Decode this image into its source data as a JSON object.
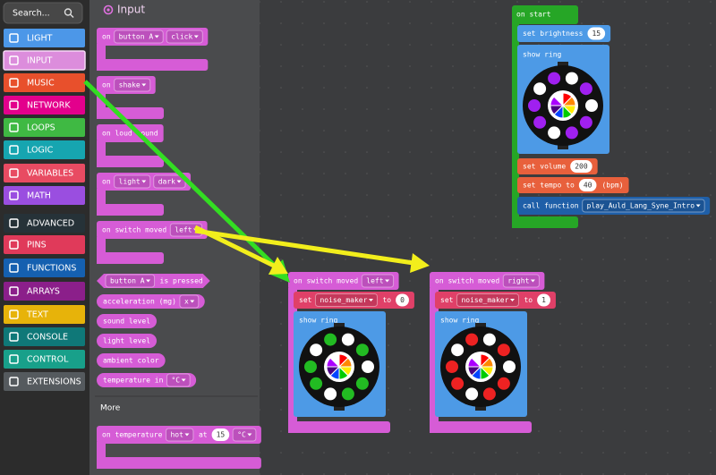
{
  "search": "Search...",
  "toolbox": [
    "LIGHT",
    "INPUT",
    "MUSIC",
    "NETWORK",
    "LOOPS",
    "LOGIC",
    "VARIABLES",
    "MATH",
    "ADVANCED",
    "PINS",
    "FUNCTIONS",
    "ARRAYS",
    "TEXT",
    "CONSOLE",
    "CONTROL",
    "EXTENSIONS"
  ],
  "flyout": {
    "title": "Input",
    "blocks": [
      [
        "on",
        "button A",
        "click"
      ],
      [
        "on",
        "shake"
      ],
      [
        "on loud sound"
      ],
      [
        "on",
        "light",
        "dark"
      ],
      [
        "on switch moved",
        "left"
      ],
      [
        "button A",
        "is pressed"
      ],
      [
        "acceleration (mg)",
        "x"
      ],
      [
        "sound level"
      ],
      [
        "light level"
      ],
      [
        "ambient color"
      ],
      [
        "temperature in",
        "°C"
      ]
    ],
    "more": "More",
    "last": [
      "on temperature",
      "hot",
      "at",
      15,
      "°C"
    ]
  },
  "workspace": {
    "on_start": {
      "hat": "on start",
      "brightness": [
        "set brightness",
        15
      ],
      "show_ring": "show ring",
      "volume": [
        "set volume",
        200
      ],
      "tempo": [
        "set tempo to",
        40,
        "(bpm)"
      ],
      "call": [
        "call function",
        "play_Auld_Lang_Syne_Intro"
      ]
    },
    "handlers": [
      {
        "hat": [
          "on switch moved",
          "left"
        ],
        "set": [
          "set",
          "noise_maker",
          "to",
          0
        ],
        "show_ring": "show ring"
      },
      {
        "hat": [
          "on switch moved",
          "right"
        ],
        "set": [
          "set",
          "noise_maker",
          "to",
          1
        ],
        "show_ring": "show ring"
      }
    ]
  }
}
